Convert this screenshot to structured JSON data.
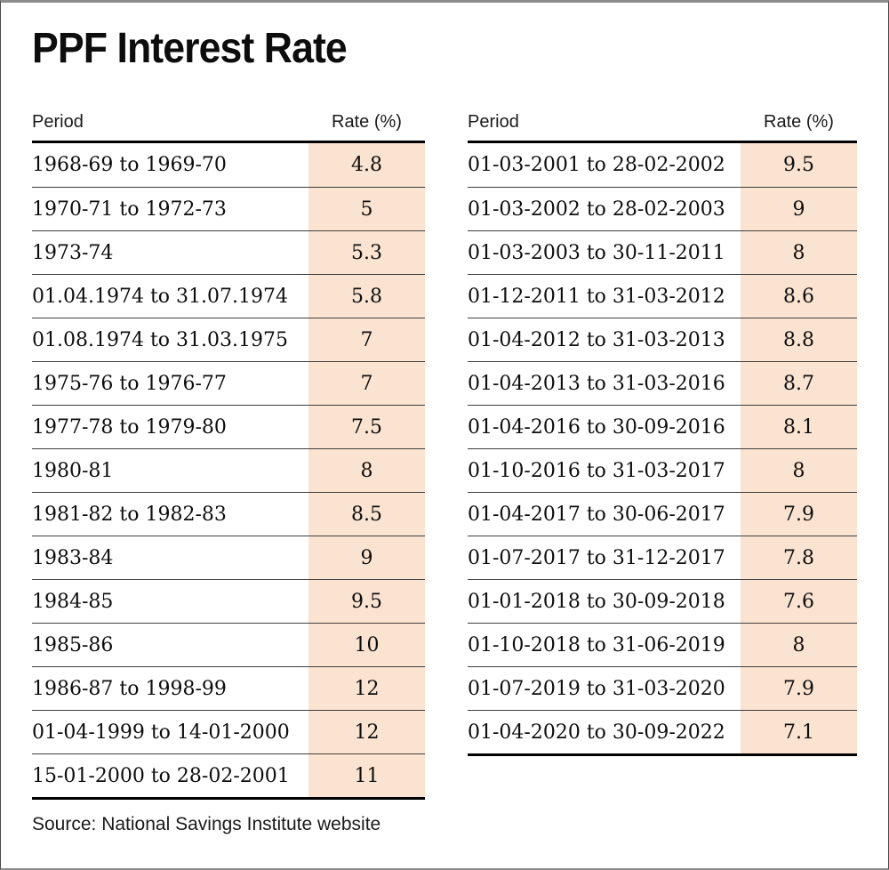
{
  "title": "PPF Interest Rate",
  "source": "Source: National Savings Institute website",
  "colors": {
    "rate_column_bg": "#fbe3d1",
    "text": "#0d0d0d",
    "thick_rule": "#000000",
    "thin_rule": "#3d3d3d"
  },
  "columns": {
    "period": "Period",
    "rate": "Rate (%)"
  },
  "tables": [
    {
      "rows": [
        {
          "period": "1968-69 to 1969-70",
          "rate": "4.8"
        },
        {
          "period": "1970-71 to 1972-73",
          "rate": "5"
        },
        {
          "period": "1973-74",
          "rate": "5.3"
        },
        {
          "period": "01.04.1974 to 31.07.1974",
          "rate": "5.8"
        },
        {
          "period": "01.08.1974 to 31.03.1975",
          "rate": "7"
        },
        {
          "period": "1975-76 to 1976-77",
          "rate": "7"
        },
        {
          "period": "1977-78 to 1979-80",
          "rate": "7.5"
        },
        {
          "period": "1980-81",
          "rate": "8"
        },
        {
          "period": "1981-82 to 1982-83",
          "rate": "8.5"
        },
        {
          "period": "1983-84",
          "rate": "9"
        },
        {
          "period": "1984-85",
          "rate": "9.5"
        },
        {
          "period": "1985-86",
          "rate": "10"
        },
        {
          "period": "1986-87 to 1998-99",
          "rate": "12"
        },
        {
          "period": "01-04-1999 to 14-01-2000",
          "rate": "12"
        },
        {
          "period": "15-01-2000 to 28-02-2001",
          "rate": "11"
        }
      ]
    },
    {
      "rows": [
        {
          "period": "01-03-2001 to 28-02-2002",
          "rate": "9.5"
        },
        {
          "period": "01-03-2002 to 28-02-2003",
          "rate": "9"
        },
        {
          "period": "01-03-2003 to 30-11-2011",
          "rate": "8"
        },
        {
          "period": "01-12-2011 to 31-03-2012",
          "rate": "8.6"
        },
        {
          "period": "01-04-2012 to 31-03-2013",
          "rate": "8.8"
        },
        {
          "period": "01-04-2013 to 31-03-2016",
          "rate": "8.7"
        },
        {
          "period": "01-04-2016 to 30-09-2016",
          "rate": "8.1"
        },
        {
          "period": "01-10-2016 to 31-03-2017",
          "rate": "8"
        },
        {
          "period": "01-04-2017 to 30-06-2017",
          "rate": "7.9"
        },
        {
          "period": "01-07-2017 to 31-12-2017",
          "rate": "7.8"
        },
        {
          "period": "01-01-2018 to 30-09-2018",
          "rate": "7.6"
        },
        {
          "period": "01-10-2018 to 31-06-2019",
          "rate": "8"
        },
        {
          "period": "01-07-2019 to 31-03-2020",
          "rate": "7.9"
        },
        {
          "period": "01-04-2020 to 30-09-2022",
          "rate": "7.1"
        }
      ]
    }
  ],
  "chart_data": {
    "type": "table",
    "title": "PPF Interest Rate",
    "columns": [
      "Period",
      "Rate (%)"
    ],
    "rows": [
      [
        "1968-69 to 1969-70",
        4.8
      ],
      [
        "1970-71 to 1972-73",
        5
      ],
      [
        "1973-74",
        5.3
      ],
      [
        "01.04.1974 to 31.07.1974",
        5.8
      ],
      [
        "01.08.1974 to 31.03.1975",
        7
      ],
      [
        "1975-76 to 1976-77",
        7
      ],
      [
        "1977-78 to 1979-80",
        7.5
      ],
      [
        "1980-81",
        8
      ],
      [
        "1981-82 to 1982-83",
        8.5
      ],
      [
        "1983-84",
        9
      ],
      [
        "1984-85",
        9.5
      ],
      [
        "1985-86",
        10
      ],
      [
        "1986-87 to 1998-99",
        12
      ],
      [
        "01-04-1999 to 14-01-2000",
        12
      ],
      [
        "15-01-2000 to 28-02-2001",
        11
      ],
      [
        "01-03-2001 to 28-02-2002",
        9.5
      ],
      [
        "01-03-2002 to 28-02-2003",
        9
      ],
      [
        "01-03-2003 to 30-11-2011",
        8
      ],
      [
        "01-12-2011 to 31-03-2012",
        8.6
      ],
      [
        "01-04-2012 to 31-03-2013",
        8.8
      ],
      [
        "01-04-2013 to 31-03-2016",
        8.7
      ],
      [
        "01-04-2016 to 30-09-2016",
        8.1
      ],
      [
        "01-10-2016 to 31-03-2017",
        8
      ],
      [
        "01-04-2017 to 30-06-2017",
        7.9
      ],
      [
        "01-07-2017 to 31-12-2017",
        7.8
      ],
      [
        "01-01-2018 to 30-09-2018",
        7.6
      ],
      [
        "01-10-2018 to 31-06-2019",
        8
      ],
      [
        "01-07-2019 to 31-03-2020",
        7.9
      ],
      [
        "01-04-2020 to 30-09-2022",
        7.1
      ]
    ],
    "source": "Source: National Savings Institute website"
  }
}
